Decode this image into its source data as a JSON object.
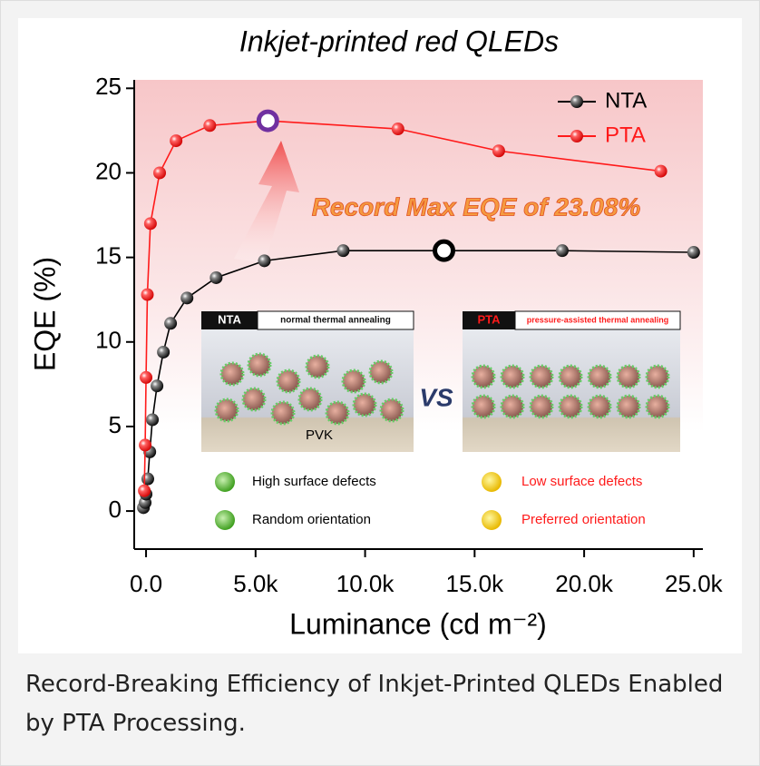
{
  "chart_data": {
    "type": "line",
    "title": "Inkjet-printed red QLEDs",
    "xlabel": "Luminance (cd m⁻²)",
    "ylabel": "EQE (%)",
    "xlim": [
      -540,
      25420
    ],
    "ylim": [
      -2.25,
      25.5
    ],
    "xticks": [
      {
        "value": 0,
        "label": "0.0"
      },
      {
        "value": 5000,
        "label": "5.0k"
      },
      {
        "value": 10000,
        "label": "10.0k"
      },
      {
        "value": 15000,
        "label": "15.0k"
      },
      {
        "value": 20000,
        "label": "20.0k"
      },
      {
        "value": 25000,
        "label": "25.0k"
      }
    ],
    "yticks": [
      0,
      5,
      10,
      15,
      20,
      25
    ],
    "legend_position": "upper right",
    "series": [
      {
        "name": "NTA",
        "color": "#000000",
        "highlight_color": "#000000",
        "highlight_index": 13,
        "x": [
          -120,
          -40,
          0,
          80,
          170,
          290,
          500,
          790,
          1120,
          1870,
          3200,
          5400,
          9000,
          13600,
          19000,
          25000
        ],
        "values": [
          0.2,
          0.5,
          1.0,
          1.9,
          3.5,
          5.4,
          7.4,
          9.4,
          11.1,
          12.6,
          13.8,
          14.8,
          15.4,
          15.4,
          15.4,
          15.3
        ]
      },
      {
        "name": "PTA",
        "color": "#ff1a1a",
        "highlight_color": "#7030a0",
        "highlight_index": 8,
        "x": [
          -80,
          -40,
          0,
          60,
          200,
          620,
          1370,
          2910,
          5560,
          11500,
          16100,
          23500
        ],
        "values": [
          1.2,
          3.9,
          7.9,
          12.8,
          17.0,
          20.0,
          21.9,
          22.8,
          23.08,
          22.6,
          21.3,
          20.1
        ]
      }
    ],
    "annotation": "Record Max EQE of 23.08%",
    "inset": {
      "left": {
        "tag": "NTA",
        "heading": "normal thermal annealing",
        "layer": "PVK",
        "notes": [
          "High surface defects",
          "Random orientation"
        ]
      },
      "middle": "VS",
      "right": {
        "tag": "PTA",
        "heading": "pressure-assisted thermal annealing",
        "notes": [
          "Low surface defects",
          "Preferred orientation"
        ]
      }
    }
  },
  "caption": "Record-Breaking Efficiency of Inkjet-Printed QLEDs Enabled by PTA Processing."
}
